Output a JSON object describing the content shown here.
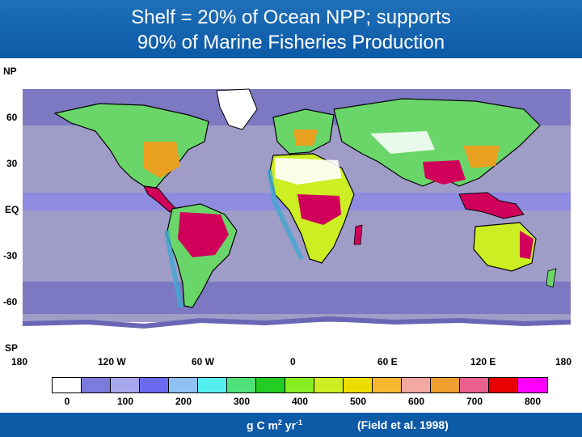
{
  "title": {
    "line1": "Shelf = 20% of Ocean NPP; supports",
    "line2": "90% of Marine Fisheries Production"
  },
  "map": {
    "latitude_labels": [
      "NP",
      "60",
      "30",
      "EQ",
      "-30",
      "-60",
      "SP"
    ],
    "longitude_labels": [
      "180",
      "120 W",
      "60 W",
      "0",
      "60 E",
      "120 E",
      "180"
    ]
  },
  "legend": {
    "colors": [
      "#ffffff",
      "#7b7bdc",
      "#a7a7ee",
      "#6a6af0",
      "#8fc1f2",
      "#55eeee",
      "#50e07a",
      "#22cc22",
      "#88ee22",
      "#ccee22",
      "#eedd00",
      "#f5b830",
      "#f0a8a0",
      "#f0a030",
      "#e86090",
      "#e80000",
      "#ff00ff"
    ],
    "ticks": [
      "0",
      "100",
      "200",
      "300",
      "400",
      "500",
      "600",
      "700",
      "800"
    ]
  },
  "footer": {
    "unit_base": "g C m",
    "unit_exp1": "2",
    "unit_mid": " yr",
    "unit_exp2": "-1",
    "citation": "(Field et al. 1998)"
  },
  "colors": {
    "title_bg": "#0d5aa7",
    "deep_ocean": "#a09cc8",
    "mid_ocean": "#7d78c2",
    "coast_ocean": "#3fa8d0",
    "land_low": "#6ad66a",
    "land_high": "#d0005a",
    "ice": "#ffffff",
    "unsampled": "#c8c8c8"
  }
}
